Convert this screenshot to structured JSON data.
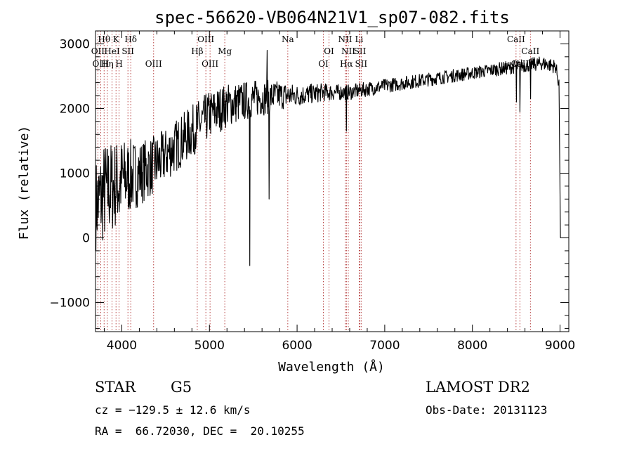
{
  "chart_data": {
    "type": "line",
    "title": "spec-56620-VB064N21V1_sp07-082.fits",
    "xlabel": "Wavelength (Å)",
    "ylabel": "Flux (relative)",
    "xlim": [
      3700,
      9100
    ],
    "ylim": [
      -1450,
      3200
    ],
    "x_ticks": [
      4000,
      5000,
      6000,
      7000,
      8000,
      9000
    ],
    "x_tick_labels": [
      "4000",
      "5000",
      "6000",
      "7000",
      "8000",
      "9000"
    ],
    "y_ticks": [
      -1000,
      0,
      1000,
      2000,
      3000
    ],
    "y_tick_labels": [
      "−1000",
      "0",
      "1000",
      "2000",
      "3000"
    ],
    "grid": false,
    "continuum": [
      [
        3700,
        500
      ],
      [
        3800,
        700
      ],
      [
        3900,
        800
      ],
      [
        4000,
        900
      ],
      [
        4200,
        1000
      ],
      [
        4400,
        1150
      ],
      [
        4600,
        1400
      ],
      [
        4800,
        1650
      ],
      [
        5000,
        1900
      ],
      [
        5200,
        2050
      ],
      [
        5500,
        2150
      ],
      [
        5800,
        2200
      ],
      [
        6000,
        2200
      ],
      [
        6300,
        2250
      ],
      [
        6600,
        2250
      ],
      [
        7000,
        2350
      ],
      [
        7500,
        2450
      ],
      [
        8000,
        2550
      ],
      [
        8500,
        2650
      ],
      [
        8800,
        2700
      ],
      [
        8950,
        2650
      ],
      [
        9000,
        2300
      ]
    ],
    "noise": [
      [
        3700,
        700
      ],
      [
        3800,
        800
      ],
      [
        4000,
        650
      ],
      [
        4200,
        500
      ],
      [
        4500,
        420
      ],
      [
        4800,
        400
      ],
      [
        5000,
        380
      ],
      [
        5300,
        320
      ],
      [
        5600,
        280
      ],
      [
        6000,
        170
      ],
      [
        6500,
        120
      ],
      [
        7000,
        110
      ],
      [
        8000,
        100
      ],
      [
        9000,
        110
      ]
    ],
    "features": [
      [
        5460,
        -430
      ],
      [
        5660,
        2900
      ],
      [
        5680,
        600
      ],
      [
        6563,
        1650
      ],
      [
        8500,
        2100
      ],
      [
        8542,
        1950
      ],
      [
        8662,
        2150
      ],
      [
        9005,
        0
      ],
      [
        3970,
        400
      ],
      [
        4340,
        800
      ]
    ],
    "lines": [
      {
        "label": "Hθ",
        "x": 3798,
        "row": 0
      },
      {
        "label": "OII",
        "x": 3727,
        "row": 1
      },
      {
        "label": "OIII",
        "x": 3760,
        "row": 2
      },
      {
        "label": "K",
        "x": 3934,
        "row": 0
      },
      {
        "label": "HeI",
        "x": 3889,
        "row": 1
      },
      {
        "label": "Hη",
        "x": 3835,
        "row": 2
      },
      {
        "label": "Hδ",
        "x": 4102,
        "row": 0
      },
      {
        "label": "SII",
        "x": 4070,
        "row": 1
      },
      {
        "label": "H",
        "x": 3969,
        "row": 2
      },
      {
        "label": "OIII",
        "x": 4363,
        "row": 2
      },
      {
        "label": "OIII",
        "x": 4959,
        "row": 0
      },
      {
        "label": "Hβ",
        "x": 4861,
        "row": 1
      },
      {
        "label": "OIII",
        "x": 5007,
        "row": 2
      },
      {
        "label": "Mg",
        "x": 5175,
        "row": 1
      },
      {
        "label": "Na",
        "x": 5894,
        "row": 0
      },
      {
        "label": "OI",
        "x": 6364,
        "row": 1
      },
      {
        "label": "OI",
        "x": 6300,
        "row": 2
      },
      {
        "label": "NII",
        "x": 6548,
        "row": 0
      },
      {
        "label": "NII",
        "x": 6584,
        "row": 1
      },
      {
        "label": "Hα",
        "x": 6563,
        "row": 2
      },
      {
        "label": "Li",
        "x": 6708,
        "row": 0
      },
      {
        "label": "SII",
        "x": 6717,
        "row": 1
      },
      {
        "label": "SII",
        "x": 6731,
        "row": 2
      },
      {
        "label": "CaII",
        "x": 8498,
        "row": 0
      },
      {
        "label": "CaII",
        "x": 8662,
        "row": 1
      },
      {
        "label": "CaII",
        "x": 8542,
        "row": 2
      }
    ]
  },
  "info": {
    "object_class": "STAR",
    "subclass": "G5",
    "survey": "LAMOST DR2",
    "cz": "cz = −129.5 ± 12.6 km/s",
    "obs_date": "Obs-Date: 20131123",
    "coords": "RA =  66.72030, DEC =  20.10255"
  }
}
